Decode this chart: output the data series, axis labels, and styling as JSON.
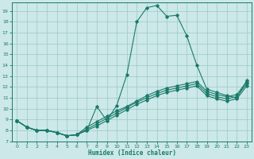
{
  "xlabel": "Humidex (Indice chaleur)",
  "x": [
    0,
    1,
    2,
    3,
    4,
    5,
    6,
    7,
    8,
    9,
    10,
    11,
    12,
    13,
    14,
    15,
    16,
    17,
    18,
    19,
    20,
    21,
    22,
    23
  ],
  "line1": [
    8.9,
    8.3,
    8.0,
    8.0,
    7.8,
    7.5,
    7.6,
    8.0,
    10.2,
    8.9,
    10.3,
    13.1,
    18.0,
    19.3,
    19.5,
    18.5,
    18.6,
    16.7,
    14.0,
    11.8,
    11.5,
    11.2,
    11.0,
    12.6
  ],
  "line2": [
    8.9,
    8.3,
    8.0,
    8.0,
    7.8,
    7.5,
    7.6,
    8.3,
    8.8,
    9.3,
    9.8,
    10.2,
    10.7,
    11.2,
    11.6,
    11.9,
    12.1,
    12.3,
    12.5,
    11.6,
    11.3,
    11.1,
    11.3,
    12.5
  ],
  "line3": [
    8.9,
    8.3,
    8.0,
    8.0,
    7.8,
    7.5,
    7.6,
    8.1,
    8.6,
    9.1,
    9.6,
    10.1,
    10.6,
    11.0,
    11.4,
    11.7,
    11.9,
    12.1,
    12.3,
    11.4,
    11.1,
    10.9,
    11.1,
    12.3
  ],
  "line4": [
    8.9,
    8.3,
    8.0,
    8.0,
    7.8,
    7.5,
    7.6,
    8.0,
    8.4,
    8.9,
    9.4,
    9.9,
    10.4,
    10.8,
    11.2,
    11.5,
    11.7,
    11.9,
    12.1,
    11.2,
    10.9,
    10.7,
    10.9,
    12.1
  ],
  "color": "#1a7a6a",
  "bg_color": "#cce8e8",
  "grid_color": "#9ac8c8",
  "ylim": [
    7,
    19.8
  ],
  "xlim": [
    -0.5,
    23.5
  ],
  "yticks": [
    7,
    8,
    9,
    10,
    11,
    12,
    13,
    14,
    15,
    16,
    17,
    18,
    19
  ],
  "xticks": [
    0,
    1,
    2,
    3,
    4,
    5,
    6,
    7,
    8,
    9,
    10,
    11,
    12,
    13,
    14,
    15,
    16,
    17,
    18,
    19,
    20,
    21,
    22,
    23
  ]
}
